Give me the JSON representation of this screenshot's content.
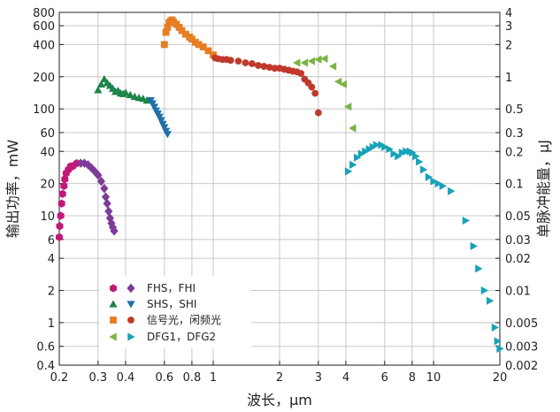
{
  "chart_data": {
    "type": "scatter",
    "xscale": "log",
    "yscale": "log",
    "xlim": [
      0.2,
      20
    ],
    "ylim": [
      0.4,
      800
    ],
    "y2lim": [
      0.002,
      4
    ],
    "xlabel": "波长，μm",
    "ylabel": "输出功率，mW",
    "y2label": "单脉冲能量，μJ",
    "grid": true,
    "xticks": [
      0.2,
      0.3,
      0.4,
      0.6,
      0.8,
      1,
      2,
      3,
      4,
      6,
      8,
      10,
      20
    ],
    "xtick_labels": [
      "0.2",
      "0.3",
      "0.4",
      "0.6",
      "0.8",
      "1",
      "2",
      "3",
      "4",
      "6",
      "8",
      "10",
      "20"
    ],
    "yticks": [
      0.4,
      0.6,
      1,
      2,
      4,
      6,
      10,
      20,
      40,
      60,
      100,
      200,
      400,
      600,
      800
    ],
    "ytick_labels": [
      "0.4",
      "0.6",
      "1",
      "2",
      "4",
      "6",
      "10",
      "20",
      "40",
      "60",
      "100",
      "200",
      "400",
      "600",
      "800"
    ],
    "y2ticks": [
      0.002,
      0.003,
      0.005,
      0.01,
      0.02,
      0.03,
      0.05,
      0.1,
      0.2,
      0.3,
      0.5,
      1,
      2,
      3,
      4
    ],
    "y2tick_labels": [
      "0.002",
      "0.003",
      "0.005",
      "0.01",
      "0.02",
      "0.03",
      "0.05",
      "0.1",
      "0.2",
      "0.3",
      "0.5",
      "1",
      "2",
      "3",
      "4"
    ],
    "legend": {
      "placement": "bottom-left",
      "entries": [
        "FHS，FHI",
        "SHS，SHI",
        "信号光，闲频光",
        "DFG1，DFG2"
      ]
    },
    "series": [
      {
        "group": "FHS，FHI",
        "marker": "hexagon",
        "color": "#c2187a",
        "points": [
          [
            0.2,
            6.3
          ],
          [
            0.201,
            8
          ],
          [
            0.203,
            10
          ],
          [
            0.205,
            13
          ],
          [
            0.207,
            16
          ],
          [
            0.21,
            19
          ],
          [
            0.212,
            22
          ],
          [
            0.215,
            25
          ],
          [
            0.22,
            27
          ],
          [
            0.225,
            29
          ],
          [
            0.23,
            29
          ],
          [
            0.24,
            31
          ]
        ]
      },
      {
        "group": "FHS，FHI",
        "marker": "diamond",
        "color": "#7d3c98",
        "points": [
          [
            0.25,
            31
          ],
          [
            0.26,
            31
          ],
          [
            0.27,
            30
          ],
          [
            0.28,
            28
          ],
          [
            0.29,
            26
          ],
          [
            0.3,
            24
          ],
          [
            0.31,
            21
          ],
          [
            0.32,
            18
          ],
          [
            0.325,
            15
          ],
          [
            0.33,
            13
          ],
          [
            0.335,
            11
          ],
          [
            0.34,
            9.5
          ],
          [
            0.345,
            8.5
          ],
          [
            0.35,
            7.8
          ],
          [
            0.355,
            7.2
          ]
        ]
      },
      {
        "group": "SHS，SHI",
        "marker": "triangle-up",
        "color": "#1e8449",
        "points": [
          [
            0.3,
            150
          ],
          [
            0.31,
            170
          ],
          [
            0.32,
            190
          ],
          [
            0.33,
            175
          ],
          [
            0.34,
            165
          ],
          [
            0.35,
            155
          ],
          [
            0.36,
            145
          ],
          [
            0.37,
            148
          ],
          [
            0.38,
            140
          ],
          [
            0.39,
            138
          ],
          [
            0.4,
            142
          ],
          [
            0.42,
            135
          ],
          [
            0.44,
            130
          ],
          [
            0.46,
            127
          ],
          [
            0.48,
            125
          ],
          [
            0.5,
            120
          ]
        ]
      },
      {
        "group": "SHS，SHI",
        "marker": "triangle-down",
        "color": "#1f6fa8",
        "points": [
          [
            0.52,
            120
          ],
          [
            0.53,
            112
          ],
          [
            0.54,
            104
          ],
          [
            0.55,
            96
          ],
          [
            0.56,
            90
          ],
          [
            0.57,
            84
          ],
          [
            0.58,
            78
          ],
          [
            0.59,
            72
          ],
          [
            0.6,
            67
          ],
          [
            0.61,
            62
          ],
          [
            0.62,
            58
          ]
        ]
      },
      {
        "group": "信号光，闲频光",
        "marker": "square",
        "color": "#e67e22",
        "points": [
          [
            0.6,
            400
          ],
          [
            0.61,
            520
          ],
          [
            0.62,
            580
          ],
          [
            0.63,
            640
          ],
          [
            0.64,
            660
          ],
          [
            0.65,
            680
          ],
          [
            0.66,
            650
          ],
          [
            0.68,
            620
          ],
          [
            0.7,
            580
          ],
          [
            0.72,
            540
          ],
          [
            0.75,
            500
          ],
          [
            0.78,
            470
          ],
          [
            0.8,
            450
          ],
          [
            0.83,
            420
          ],
          [
            0.86,
            400
          ],
          [
            0.9,
            380
          ],
          [
            0.95,
            350
          ],
          [
            1,
            320
          ]
        ]
      },
      {
        "group": "信号光，闲频光",
        "marker": "circle",
        "color": "#c0392b",
        "points": [
          [
            1.02,
            300
          ],
          [
            1.05,
            295
          ],
          [
            1.1,
            290
          ],
          [
            1.15,
            290
          ],
          [
            1.2,
            285
          ],
          [
            1.3,
            280
          ],
          [
            1.4,
            270
          ],
          [
            1.5,
            265
          ],
          [
            1.6,
            255
          ],
          [
            1.7,
            250
          ],
          [
            1.8,
            245
          ],
          [
            1.9,
            240
          ],
          [
            2,
            240
          ],
          [
            2.1,
            235
          ],
          [
            2.2,
            230
          ],
          [
            2.3,
            225
          ],
          [
            2.4,
            222
          ],
          [
            2.5,
            215
          ],
          [
            2.6,
            190
          ],
          [
            2.7,
            175
          ],
          [
            2.8,
            160
          ],
          [
            2.9,
            140
          ],
          [
            3,
            92
          ]
        ]
      },
      {
        "group": "DFG1，DFG2",
        "marker": "triangle-left",
        "color": "#7cb342",
        "points": [
          [
            2.4,
            270
          ],
          [
            2.6,
            270
          ],
          [
            2.8,
            280
          ],
          [
            3,
            290
          ],
          [
            3.2,
            295
          ],
          [
            3.5,
            250
          ],
          [
            3.7,
            180
          ],
          [
            3.9,
            170
          ],
          [
            4.1,
            105
          ],
          [
            4.3,
            66
          ]
        ]
      },
      {
        "group": "DFG1，DFG2",
        "marker": "triangle-right",
        "color": "#17a2b8",
        "points": [
          [
            4.1,
            26
          ],
          [
            4.3,
            30
          ],
          [
            4.5,
            35
          ],
          [
            4.7,
            38
          ],
          [
            4.9,
            40
          ],
          [
            5.1,
            42
          ],
          [
            5.3,
            44
          ],
          [
            5.5,
            46
          ],
          [
            5.8,
            46
          ],
          [
            6,
            44
          ],
          [
            6.3,
            42
          ],
          [
            6.6,
            38
          ],
          [
            6.9,
            36
          ],
          [
            7.2,
            39
          ],
          [
            7.5,
            40
          ],
          [
            7.8,
            40
          ],
          [
            8,
            39
          ],
          [
            8.3,
            36
          ],
          [
            8.6,
            32
          ],
          [
            9,
            27
          ],
          [
            9.5,
            23
          ],
          [
            10,
            21
          ],
          [
            10.5,
            20
          ],
          [
            11,
            19
          ],
          [
            12,
            17
          ],
          [
            14,
            9
          ],
          [
            15.2,
            5.2
          ],
          [
            16,
            3.2
          ],
          [
            17,
            2
          ],
          [
            18,
            1.6
          ],
          [
            19,
            0.9
          ],
          [
            19.5,
            0.67
          ],
          [
            20,
            0.57
          ]
        ]
      }
    ]
  }
}
